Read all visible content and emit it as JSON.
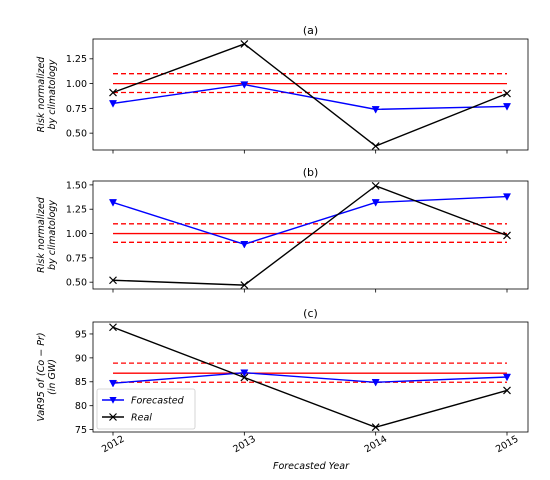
{
  "figure": {
    "xlabel": "Forecasted Year",
    "x_ticks": [
      "2012",
      "2013",
      "2014",
      "2015"
    ]
  },
  "legend": {
    "location": "lower-left of panel (c)",
    "entries": [
      {
        "label": "Forecasted",
        "color": "#0000ff",
        "marker": "triangle-down"
      },
      {
        "label": "Real",
        "color": "#000000",
        "marker": "x"
      }
    ]
  },
  "chart_data": [
    {
      "type": "line",
      "title": "(a)",
      "ylabel_lines": [
        "Risk normalized",
        "by climatology"
      ],
      "x": [
        2012,
        2013,
        2014,
        2015
      ],
      "ylim": [
        0.33,
        1.45
      ],
      "yticks": [
        0.5,
        0.75,
        1.0,
        1.25
      ],
      "ytick_labels": [
        "0.50",
        "0.75",
        "1.00",
        "1.25"
      ],
      "series": [
        {
          "name": "Forecasted",
          "color": "#0000ff",
          "marker": "triangle-down",
          "values": [
            0.8,
            0.99,
            0.74,
            0.77
          ]
        },
        {
          "name": "Real",
          "color": "#000000",
          "marker": "x",
          "values": [
            0.91,
            1.4,
            0.37,
            0.9
          ]
        }
      ],
      "reference_lines": [
        {
          "y": 1.0,
          "style": "solid",
          "color": "#ff0000"
        },
        {
          "y": 1.1,
          "style": "dashed",
          "color": "#ff0000"
        },
        {
          "y": 0.91,
          "style": "dashed",
          "color": "#ff0000"
        }
      ],
      "show_x_tick_labels": false
    },
    {
      "type": "line",
      "title": "(b)",
      "ylabel_lines": [
        "Risk normalized",
        "by climatology"
      ],
      "x": [
        2012,
        2013,
        2014,
        2015
      ],
      "ylim": [
        0.43,
        1.54
      ],
      "yticks": [
        0.5,
        0.75,
        1.0,
        1.25,
        1.5
      ],
      "ytick_labels": [
        "0.50",
        "0.75",
        "1.00",
        "1.25",
        "1.50"
      ],
      "series": [
        {
          "name": "Forecasted",
          "color": "#0000ff",
          "marker": "triangle-down",
          "values": [
            1.32,
            0.89,
            1.32,
            1.38
          ]
        },
        {
          "name": "Real",
          "color": "#000000",
          "marker": "x",
          "values": [
            0.52,
            0.47,
            1.49,
            0.98
          ]
        }
      ],
      "reference_lines": [
        {
          "y": 1.0,
          "style": "solid",
          "color": "#ff0000"
        },
        {
          "y": 1.1,
          "style": "dashed",
          "color": "#ff0000"
        },
        {
          "y": 0.91,
          "style": "dashed",
          "color": "#ff0000"
        }
      ],
      "show_x_tick_labels": false
    },
    {
      "type": "line",
      "title": "(c)",
      "ylabel_lines": [
        "VaR95 of (Co − Pr)",
        "(in GW)"
      ],
      "x": [
        2012,
        2013,
        2014,
        2015
      ],
      "ylim": [
        74.5,
        97.5
      ],
      "yticks": [
        75,
        80,
        85,
        90,
        95
      ],
      "ytick_labels": [
        "75",
        "80",
        "85",
        "90",
        "95"
      ],
      "series": [
        {
          "name": "Forecasted",
          "color": "#0000ff",
          "marker": "triangle-down",
          "values": [
            84.7,
            86.9,
            84.9,
            86.0
          ]
        },
        {
          "name": "Real",
          "color": "#000000",
          "marker": "x",
          "values": [
            96.4,
            85.9,
            75.5,
            83.2
          ]
        }
      ],
      "reference_lines": [
        {
          "y": 86.8,
          "style": "solid",
          "color": "#ff0000"
        },
        {
          "y": 88.9,
          "style": "dashed",
          "color": "#ff0000"
        },
        {
          "y": 84.9,
          "style": "dashed",
          "color": "#ff0000"
        }
      ],
      "show_x_tick_labels": true
    }
  ]
}
